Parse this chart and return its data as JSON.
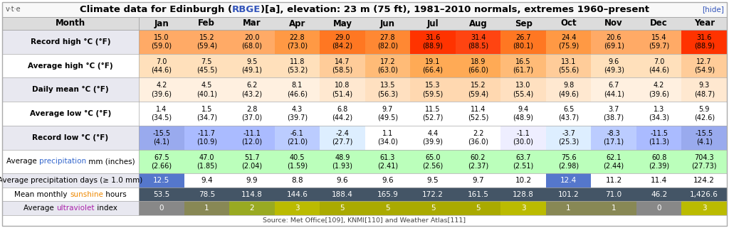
{
  "vte": "v·t·e",
  "hide": "[hide]",
  "title1": "Climate data for Edinburgh (",
  "title2": "RBGE",
  "title3": ")[a], elevation: 23 m (75 ft), 1981–2010 normals, extremes 1960–present",
  "source": "Source: Met Office[109], KNMI[110] and Weather Atlas[111]",
  "months": [
    "Jan",
    "Feb",
    "Mar",
    "Apr",
    "May",
    "Jun",
    "Jul",
    "Aug",
    "Sep",
    "Oct",
    "Nov",
    "Dec",
    "Year"
  ],
  "rows": [
    {
      "label_parts": [
        [
          "Record high °C (°F)",
          "#000000",
          true
        ]
      ],
      "values": [
        "15.0\n(59.0)",
        "15.2\n(59.4)",
        "20.0\n(68.0)",
        "22.8\n(73.0)",
        "29.0\n(84.2)",
        "27.8\n(82.0)",
        "31.6\n(88.9)",
        "31.4\n(88.5)",
        "26.7\n(80.1)",
        "24.4\n(75.9)",
        "20.6\n(69.1)",
        "15.4\n(59.7)",
        "31.6\n(88.9)"
      ],
      "bg_colors": [
        "#FFAA66",
        "#FFAA66",
        "#FFAA66",
        "#FF9944",
        "#FF7722",
        "#FF8833",
        "#FF3300",
        "#FF4411",
        "#FF7722",
        "#FF9944",
        "#FFAA66",
        "#FFAA66",
        "#FF3300"
      ],
      "text_color": "#000000",
      "label_bg": "#E8E8F0",
      "two_line": true
    },
    {
      "label_parts": [
        [
          "Average high °C (°F)",
          "#000000",
          true
        ]
      ],
      "values": [
        "7.0\n(44.6)",
        "7.5\n(45.5)",
        "9.5\n(49.1)",
        "11.8\n(53.2)",
        "14.7\n(58.5)",
        "17.2\n(63.0)",
        "19.1\n(66.4)",
        "18.9\n(66.0)",
        "16.5\n(61.7)",
        "13.1\n(55.6)",
        "9.6\n(49.3)",
        "7.0\n(44.6)",
        "12.7\n(54.9)"
      ],
      "bg_colors": [
        "#FFE0BB",
        "#FFE0BB",
        "#FFE0BB",
        "#FFE0BB",
        "#FFCC99",
        "#FFBB77",
        "#FFAA55",
        "#FFAA55",
        "#FFBB77",
        "#FFCC99",
        "#FFE0BB",
        "#FFE0BB",
        "#FFCC99"
      ],
      "text_color": "#000000",
      "label_bg": "#FFFFFF",
      "two_line": true
    },
    {
      "label_parts": [
        [
          "Daily mean °C (°F)",
          "#000000",
          true
        ]
      ],
      "values": [
        "4.2\n(39.6)",
        "4.5\n(40.1)",
        "6.2\n(43.2)",
        "8.1\n(46.6)",
        "10.8\n(51.4)",
        "13.5\n(56.3)",
        "15.3\n(59.5)",
        "15.2\n(59.4)",
        "13.0\n(55.4)",
        "9.8\n(49.6)",
        "6.7\n(44.1)",
        "4.2\n(39.6)",
        "9.3\n(48.7)"
      ],
      "bg_colors": [
        "#FFF0E0",
        "#FFF0E0",
        "#FFF0E0",
        "#FFF0E0",
        "#FFE8D0",
        "#FFE0C0",
        "#FFD8B0",
        "#FFD8B0",
        "#FFE0C0",
        "#FFE8D0",
        "#FFF0E0",
        "#FFF0E0",
        "#FFE8D0"
      ],
      "text_color": "#000000",
      "label_bg": "#E8E8F0",
      "two_line": true
    },
    {
      "label_parts": [
        [
          "Average low °C (°F)",
          "#000000",
          true
        ]
      ],
      "values": [
        "1.4\n(34.5)",
        "1.5\n(34.7)",
        "2.8\n(37.0)",
        "4.3\n(39.7)",
        "6.8\n(44.2)",
        "9.7\n(49.5)",
        "11.5\n(52.7)",
        "11.4\n(52.5)",
        "9.4\n(48.9)",
        "6.5\n(43.7)",
        "3.7\n(38.7)",
        "1.3\n(34.3)",
        "5.9\n(42.6)"
      ],
      "bg_colors": [
        "#FFFFFF",
        "#FFFFFF",
        "#FFFFFF",
        "#FFFFFF",
        "#FFFFFF",
        "#FFFFFF",
        "#FFFFFF",
        "#FFFFFF",
        "#FFFFFF",
        "#FFFFFF",
        "#FFFFFF",
        "#FFFFFF",
        "#FFFFFF"
      ],
      "text_color": "#000000",
      "label_bg": "#FFFFFF",
      "two_line": true
    },
    {
      "label_parts": [
        [
          "Record low °C (°F)",
          "#000000",
          true
        ]
      ],
      "values": [
        "-15.5\n(4.1)",
        "-11.7\n(10.9)",
        "-11.1\n(12.0)",
        "-6.1\n(21.0)",
        "-2.4\n(27.7)",
        "1.1\n(34.0)",
        "4.4\n(39.9)",
        "2.2\n(36.0)",
        "-1.1\n(30.0)",
        "-3.7\n(25.3)",
        "-8.3\n(17.1)",
        "-11.5\n(11.3)",
        "-15.5\n(4.1)"
      ],
      "bg_colors": [
        "#99AAEE",
        "#AABBFF",
        "#AABBFF",
        "#BBCCFF",
        "#DDEEFF",
        "#FFFFFF",
        "#FFFFFF",
        "#FFFFFF",
        "#EEEEFF",
        "#DDEEFF",
        "#BBCCFF",
        "#AABBFF",
        "#99AAEE"
      ],
      "text_color": "#000000",
      "label_bg": "#E8E8F0",
      "two_line": true
    },
    {
      "label_parts": [
        [
          "Average ",
          "#000000",
          false
        ],
        [
          "precipitation",
          "#3366CC",
          false
        ],
        [
          " mm (inches)",
          "#000000",
          false
        ]
      ],
      "values": [
        "67.5\n(2.66)",
        "47.0\n(1.85)",
        "51.7\n(2.04)",
        "40.5\n(1.59)",
        "48.9\n(1.93)",
        "61.3\n(2.41)",
        "65.0\n(2.56)",
        "60.2\n(2.37)",
        "63.7\n(2.51)",
        "75.6\n(2.98)",
        "62.1\n(2.44)",
        "60.8\n(2.39)",
        "704.3\n(27.73)"
      ],
      "bg_colors": [
        "#BBFFBB",
        "#BBFFBB",
        "#BBFFBB",
        "#BBFFBB",
        "#BBFFBB",
        "#BBFFBB",
        "#BBFFBB",
        "#BBFFBB",
        "#BBFFBB",
        "#BBFFBB",
        "#BBFFBB",
        "#BBFFBB",
        "#BBFFBB"
      ],
      "text_color": "#000000",
      "label_bg": "#FFFFFF",
      "two_line": true
    },
    {
      "label_parts": [
        [
          "Average precipitation days (≥ 1.0 mm)",
          "#000000",
          false
        ]
      ],
      "values": [
        "12.5",
        "9.4",
        "9.9",
        "8.8",
        "9.6",
        "9.6",
        "9.5",
        "9.7",
        "10.2",
        "12.4",
        "11.2",
        "11.4",
        "124.2"
      ],
      "bg_colors": [
        "#5577CC",
        "#FFFFFF",
        "#FFFFFF",
        "#FFFFFF",
        "#FFFFFF",
        "#FFFFFF",
        "#FFFFFF",
        "#FFFFFF",
        "#FFFFFF",
        "#5577CC",
        "#FFFFFF",
        "#FFFFFF",
        "#FFFFFF"
      ],
      "text_color_per": [
        "#FFFFFF",
        "#000000",
        "#000000",
        "#000000",
        "#000000",
        "#000000",
        "#000000",
        "#000000",
        "#000000",
        "#FFFFFF",
        "#000000",
        "#000000",
        "#000000"
      ],
      "label_bg": "#E8E8F0",
      "two_line": false
    },
    {
      "label_parts": [
        [
          "Mean monthly ",
          "#000000",
          false
        ],
        [
          "sunshine",
          "#EE8800",
          false
        ],
        [
          " hours",
          "#000000",
          false
        ]
      ],
      "values": [
        "53.5",
        "78.5",
        "114.8",
        "144.6",
        "188.4",
        "165.9",
        "172.2",
        "161.5",
        "128.8",
        "101.2",
        "71.0",
        "46.2",
        "1,426.6"
      ],
      "bg_colors": [
        "#445566",
        "#445566",
        "#445566",
        "#445566",
        "#445566",
        "#445566",
        "#445566",
        "#445566",
        "#445566",
        "#445566",
        "#445566",
        "#445566",
        "#445566"
      ],
      "text_color": "#FFFFFF",
      "label_bg": "#FFFFFF",
      "two_line": false
    },
    {
      "label_parts": [
        [
          "Average ",
          "#000000",
          false
        ],
        [
          "ultraviolet",
          "#AA22AA",
          false
        ],
        [
          " index",
          "#000000",
          false
        ]
      ],
      "values": [
        "0",
        "1",
        "2",
        "3",
        "5",
        "5",
        "5",
        "5",
        "3",
        "1",
        "1",
        "0",
        "3"
      ],
      "bg_colors": [
        "#888888",
        "#888855",
        "#99AA22",
        "#BBBB00",
        "#AAAA00",
        "#AAAA00",
        "#AAAA00",
        "#AAAA00",
        "#BBBB00",
        "#888855",
        "#888855",
        "#888888",
        "#BBBB00"
      ],
      "text_color": "#FFFFFF",
      "label_bg": "#E8E8F0",
      "two_line": false
    }
  ]
}
